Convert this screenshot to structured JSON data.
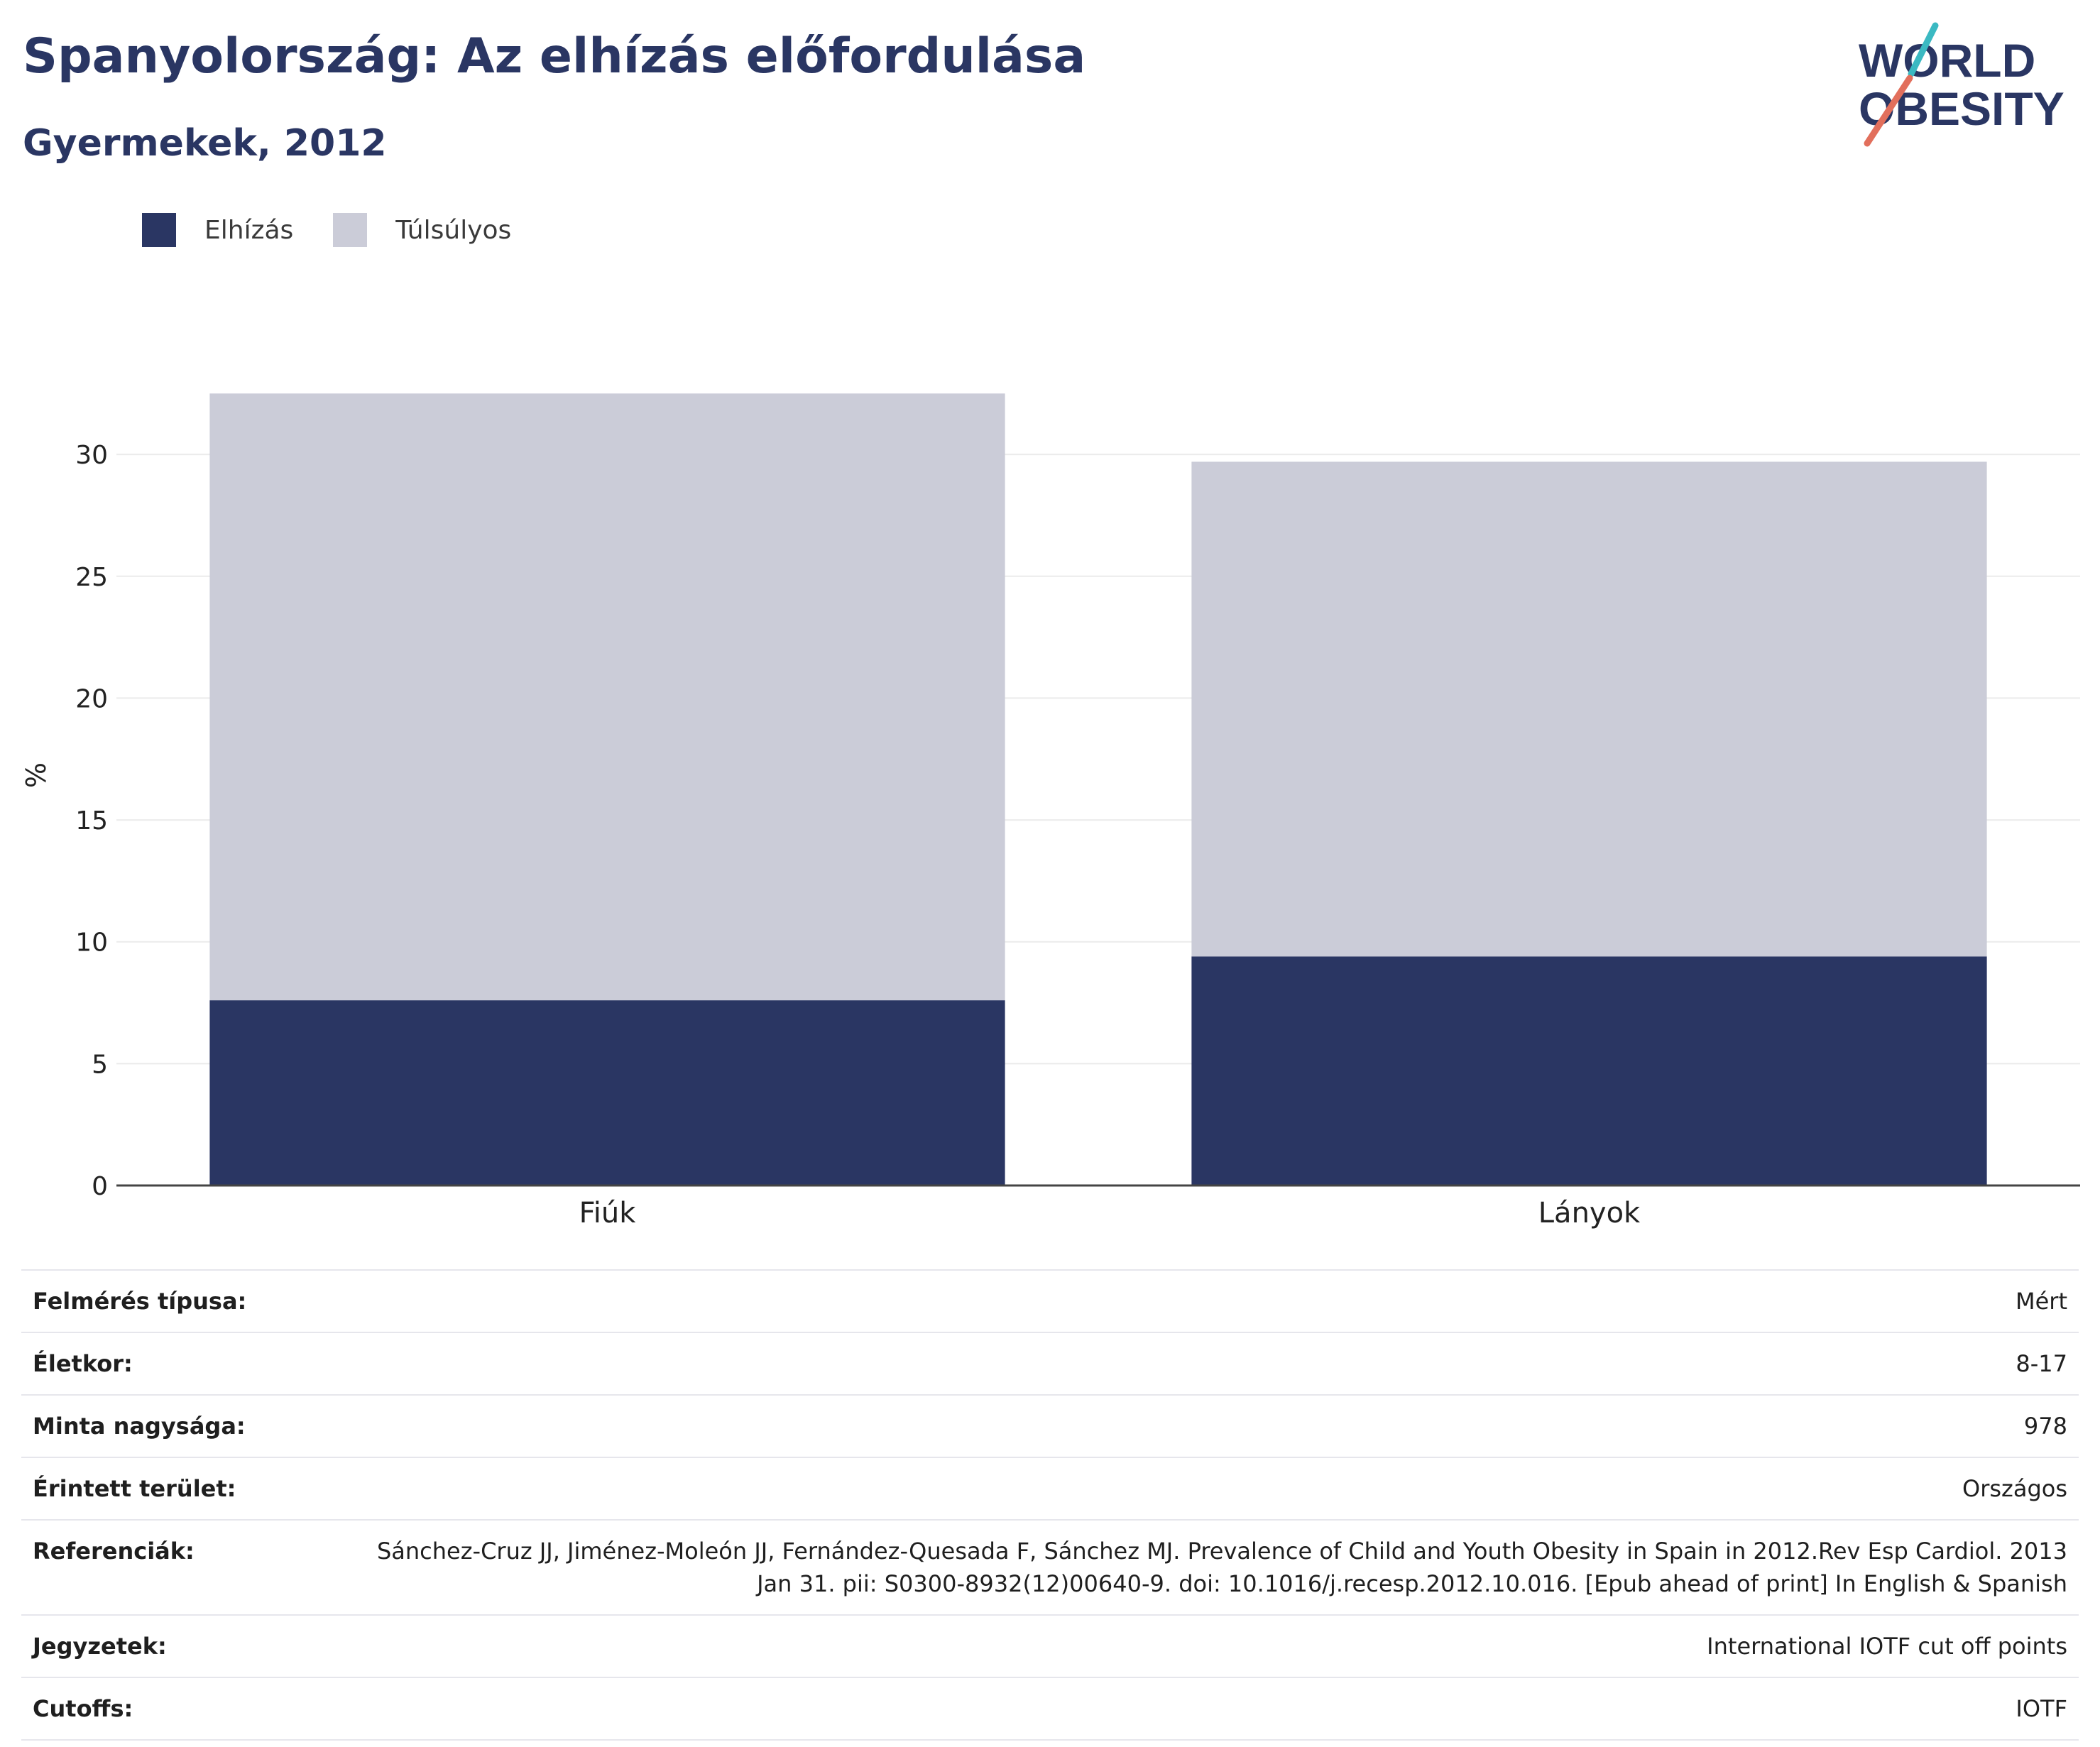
{
  "header": {
    "title": "Spanyolország: Az elhízás előfordulása",
    "subtitle": "Gyermekek, 2012"
  },
  "logo": {
    "line1": "WORLD",
    "line2": "OBESITY"
  },
  "legend": [
    {
      "label": "Elhízás",
      "color": "#2a3663"
    },
    {
      "label": "Túlsúlyos",
      "color": "#cbccd8"
    }
  ],
  "chart_data": {
    "type": "bar",
    "stacked": true,
    "categories": [
      "Fiúk",
      "Lányok"
    ],
    "series": [
      {
        "name": "Elhízás",
        "values": [
          7.6,
          9.4
        ],
        "color": "#2a3663"
      },
      {
        "name": "Túlsúlyos",
        "values": [
          24.9,
          20.3
        ],
        "color": "#cbccd8"
      }
    ],
    "ylabel": "%",
    "ylim": [
      0,
      33.5
    ],
    "yticks": [
      0,
      5,
      10,
      15,
      20,
      25,
      30
    ],
    "grid": true,
    "legend_position": "top-left"
  },
  "meta": [
    {
      "key": "Felmérés típusa:",
      "value": "Mért"
    },
    {
      "key": "Életkor:",
      "value": "8-17"
    },
    {
      "key": "Minta nagysága:",
      "value": "978"
    },
    {
      "key": "Érintett terület:",
      "value": "Országos"
    },
    {
      "key": "Referenciák:",
      "value": "Sánchez-Cruz JJ, Jiménez-Moleón JJ, Fernández-Quesada F, Sánchez MJ. Prevalence of Child and Youth Obesity in Spain in 2012.Rev Esp Cardiol. 2013 Jan 31. pii: S0300-8932(12)00640-9. doi: 10.1016/j.recesp.2012.10.016. [Epub ahead of print] In English & Spanish"
    },
    {
      "key": "Jegyzetek:",
      "value": "International IOTF cut off points"
    },
    {
      "key": "Cutoffs:",
      "value": "IOTF"
    }
  ]
}
